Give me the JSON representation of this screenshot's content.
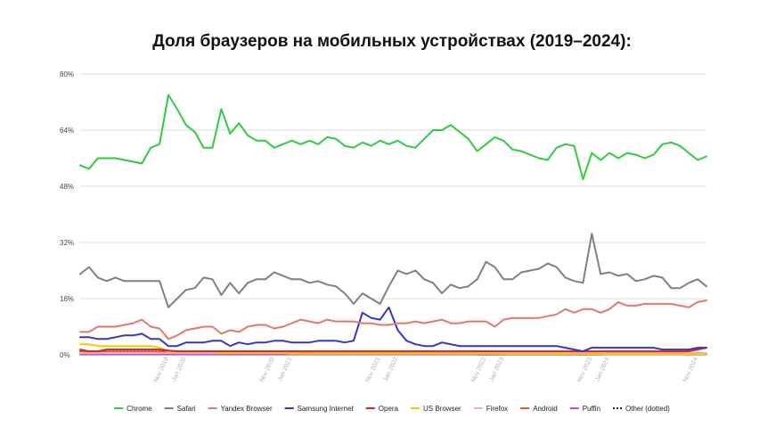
{
  "chart_data": {
    "type": "line",
    "title": "Доля браузеров на мобильных устройствах (2019–2024):",
    "xlabel": "",
    "ylabel": "",
    "y_unit": "%",
    "ylim": [
      0,
      80
    ],
    "yticks": [
      0,
      16,
      32,
      48,
      64,
      80
    ],
    "ytick_labels": [
      "0%",
      "16%",
      "32%",
      "48%",
      "64%",
      "80%"
    ],
    "grid": true,
    "legend_position": "bottom",
    "x_start": "2019-01",
    "x_end": "2024-12",
    "x_months": [
      "2019-01",
      "2019-02",
      "2019-03",
      "2019-04",
      "2019-05",
      "2019-06",
      "2019-07",
      "2019-08",
      "2019-09",
      "2019-10",
      "2019-11",
      "2019-12",
      "2020-01",
      "2020-02",
      "2020-03",
      "2020-04",
      "2020-05",
      "2020-06",
      "2020-07",
      "2020-08",
      "2020-09",
      "2020-10",
      "2020-11",
      "2020-12",
      "2021-01",
      "2021-02",
      "2021-03",
      "2021-04",
      "2021-05",
      "2021-06",
      "2021-07",
      "2021-08",
      "2021-09",
      "2021-10",
      "2021-11",
      "2021-12",
      "2022-01",
      "2022-02",
      "2022-03",
      "2022-04",
      "2022-05",
      "2022-06",
      "2022-07",
      "2022-08",
      "2022-09",
      "2022-10",
      "2022-11",
      "2022-12",
      "2023-01",
      "2023-02",
      "2023-03",
      "2023-04",
      "2023-05",
      "2023-06",
      "2023-07",
      "2023-08",
      "2023-09",
      "2023-10",
      "2023-11",
      "2023-12",
      "2024-01",
      "2024-02",
      "2024-03",
      "2024-04",
      "2024-05",
      "2024-06",
      "2024-07",
      "2024-08",
      "2024-09",
      "2024-10",
      "2024-11",
      "2024-12"
    ],
    "xtick_labels": [
      {
        "label": "Nov 2019",
        "date": "2019-11"
      },
      {
        "label": "Jan 2020",
        "date": "2020-01"
      },
      {
        "label": "Nov 2020",
        "date": "2020-11"
      },
      {
        "label": "Jan 2021",
        "date": "2021-01"
      },
      {
        "label": "Nov 2021",
        "date": "2021-11"
      },
      {
        "label": "Jan 2022",
        "date": "2022-01"
      },
      {
        "label": "Nov 2022",
        "date": "2022-11"
      },
      {
        "label": "Jan 2023",
        "date": "2023-01"
      },
      {
        "label": "Nov 2023",
        "date": "2023-11"
      },
      {
        "label": "Jan 2024",
        "date": "2024-01"
      },
      {
        "label": "Nov 2024",
        "date": "2024-11"
      }
    ],
    "series": [
      {
        "name": "Chrome",
        "color": "#2ecc40",
        "dash": "",
        "values": [
          54,
          53,
          56,
          56,
          56,
          55.5,
          55,
          54.5,
          59,
          60,
          74,
          70,
          65.5,
          63.5,
          59,
          59,
          70,
          63,
          66,
          62.5,
          61,
          61,
          59,
          60,
          61,
          60,
          61,
          60,
          62,
          61.5,
          59.5,
          59,
          60.5,
          59.5,
          61,
          60,
          61,
          59.5,
          59,
          61.5,
          64,
          64,
          65.5,
          63.5,
          61.5,
          58,
          60,
          62,
          61,
          58.5,
          58,
          57,
          56,
          55.5,
          59,
          60,
          59.5,
          50,
          57.5,
          55.5,
          57.5,
          56,
          57.5,
          57,
          56,
          57,
          60,
          60.5,
          59.5,
          57.5,
          55.5,
          56.5
        ]
      },
      {
        "name": "Safari",
        "color": "#808080",
        "dash": "",
        "values": [
          23,
          25,
          22,
          21,
          22,
          21,
          21,
          21,
          21,
          21,
          13.5,
          16,
          18.5,
          19,
          22,
          21.5,
          17,
          20.5,
          17.5,
          20.5,
          21.5,
          21.5,
          23.5,
          22.5,
          21.5,
          21.5,
          20.5,
          21,
          20,
          19.5,
          17.5,
          14.5,
          17.5,
          16,
          14.5,
          19.5,
          24,
          23,
          24,
          21.5,
          20.5,
          17.5,
          20,
          19,
          19.5,
          21.5,
          26.5,
          25,
          21.5,
          21.5,
          23.5,
          24,
          24.5,
          26,
          25,
          22,
          21,
          20.5,
          34.5,
          23,
          23.5,
          22.5,
          23,
          21,
          21.5,
          22.5,
          22,
          19,
          19,
          20.5,
          21.5,
          19.5
        ]
      },
      {
        "name": "Yandex Browser",
        "color": "#e07a6a",
        "dash": "",
        "values": [
          6.5,
          6.5,
          8,
          8,
          8,
          8.5,
          9,
          10,
          8,
          7.5,
          4.5,
          5.5,
          7,
          7.5,
          8,
          8,
          6,
          7,
          6.5,
          8,
          8.5,
          8.5,
          7.5,
          8,
          9,
          10,
          9.5,
          9,
          10,
          9.5,
          9.5,
          9.5,
          9,
          9,
          8.5,
          8.5,
          9,
          9,
          9.5,
          9,
          9.5,
          10,
          9,
          9,
          9.5,
          9.5,
          9.5,
          8,
          10,
          10.5,
          10.5,
          10.5,
          10.5,
          11,
          11.5,
          13,
          12,
          13,
          13,
          12,
          13,
          15,
          14,
          14,
          14.5,
          14.5,
          14.5,
          14.5,
          14,
          13.5,
          15,
          15.5
        ]
      },
      {
        "name": "Samsung Internet",
        "color": "#3535c8",
        "dash": "",
        "values": [
          5,
          5,
          4.5,
          4.5,
          5,
          5.5,
          5.5,
          6,
          4.5,
          4.5,
          2.5,
          2.5,
          3.5,
          3.5,
          3.5,
          4,
          4,
          2.5,
          3.5,
          3,
          3.5,
          3.5,
          4,
          4,
          3.5,
          3.5,
          3.5,
          4,
          4,
          4,
          3.5,
          4,
          12,
          10.5,
          10,
          13.5,
          7,
          4,
          3,
          2.5,
          2.5,
          3.5,
          3,
          2.5,
          2.5,
          2.5,
          2.5,
          2.5,
          2.5,
          2.5,
          2.5,
          2.5,
          2.5,
          2.5,
          2.5,
          2,
          1.5,
          1,
          2,
          2,
          2,
          2,
          2,
          2,
          2,
          2,
          1.5,
          1.5,
          1.5,
          1.5,
          2,
          2
        ]
      },
      {
        "name": "Opera",
        "color": "#e02020",
        "dash": "",
        "values": [
          1.5,
          1,
          1,
          1.5,
          1.5,
          1.5,
          1.5,
          1.5,
          1.5,
          1.5,
          1.2,
          1,
          1,
          1,
          1,
          1,
          1,
          1,
          1,
          1,
          1,
          1,
          1,
          1,
          1,
          1,
          1,
          1,
          1,
          1,
          1,
          1,
          1,
          1,
          1,
          1,
          1,
          1,
          1,
          1,
          1,
          1,
          1,
          1,
          1,
          1,
          1,
          1,
          1,
          1,
          1,
          1,
          1,
          1,
          1,
          1,
          1,
          1,
          1,
          1,
          1,
          1,
          1,
          1,
          1,
          1,
          1,
          1,
          1,
          1,
          1.5,
          2
        ]
      },
      {
        "name": "US Browser",
        "color": "#f5c800",
        "dash": "",
        "values": [
          3,
          3,
          2.5,
          2.5,
          2.5,
          2.5,
          2.5,
          2.5,
          2.5,
          2,
          1,
          0.8,
          0.8,
          0.8,
          1,
          1,
          0.5,
          0.5,
          0.5,
          0.5,
          0.5,
          0.5,
          0.5,
          0.5,
          0.3,
          0.3,
          0.3,
          0.3,
          0.3,
          0.3,
          0.3,
          0.3,
          0.3,
          0.3,
          0.3,
          0.3,
          0.3,
          0.3,
          0.3,
          0.3,
          0.3,
          0.3,
          0.3,
          0.3,
          0.3,
          0.3,
          0.3,
          0.3,
          0.2,
          0.2,
          0.2,
          0.2,
          0.2,
          0.2,
          0.2,
          0.2,
          0.2,
          0.2,
          0.2,
          0.2,
          0.2,
          0.2,
          0.2,
          0.2,
          0.2,
          0.2,
          0.2,
          0.2,
          0.2,
          0.2,
          0.2,
          0.2
        ]
      },
      {
        "name": "Firefox",
        "color": "#f5b0a8",
        "dash": "",
        "values": [
          0.5,
          0.5,
          0.5,
          0.5,
          0.5,
          0.5,
          0.5,
          0.5,
          0.5,
          0.5,
          0.5,
          0.5,
          0.5,
          0.5,
          0.5,
          0.5,
          0.5,
          0.5,
          0.5,
          0.5,
          0.5,
          0.5,
          0.5,
          0.5,
          0.5,
          0.5,
          0.5,
          0.5,
          0.5,
          0.5,
          0.5,
          0.5,
          0.5,
          0.5,
          0.5,
          0.5,
          0.5,
          0.5,
          0.5,
          0.5,
          0.5,
          0.5,
          0.5,
          0.5,
          0.5,
          0.5,
          0.5,
          0.5,
          0.5,
          0.5,
          0.5,
          0.5,
          0.5,
          0.5,
          0.5,
          0.5,
          0.5,
          0.5,
          0.5,
          0.5,
          0.5,
          0.5,
          0.5,
          0.5,
          0.5,
          0.5,
          0.5,
          0.5,
          0.5,
          0.5,
          0.5,
          0.5
        ]
      },
      {
        "name": "Android",
        "color": "#e8582e",
        "dash": "",
        "values": [
          0.8,
          0.8,
          0.8,
          0.8,
          0.8,
          0.8,
          0.8,
          0.8,
          0.8,
          0.8,
          0.8,
          0.8,
          0.8,
          0.8,
          0.8,
          0.5,
          0.5,
          0.5,
          0.5,
          0.5,
          0.5,
          0.5,
          0.5,
          0.5,
          0.5,
          0.5,
          0.5,
          0.5,
          0.5,
          0.5,
          0.5,
          0.5,
          0.5,
          0.5,
          0.5,
          0.5,
          0.5,
          0.5,
          0.5,
          0.5,
          0.5,
          0.5,
          0.5,
          0.5,
          0.5,
          0.5,
          0.5,
          0.5,
          0.5,
          0.5,
          0.5,
          0.5,
          0.5,
          0.5,
          0.5,
          0.5,
          0.5,
          0.5,
          0.5,
          0.5,
          0.5,
          0.5,
          0.5,
          0.5,
          0.5,
          0.5,
          0.5,
          0.5,
          0.5,
          0.5,
          0.5,
          0.5
        ]
      },
      {
        "name": "Puffin",
        "color": "#a855f7",
        "dash": "",
        "values": [
          0.1,
          0.1,
          0.1,
          0.1,
          0.1,
          0.1,
          0.1,
          0.1,
          0.1,
          0.1,
          0.1,
          0.1,
          0.1,
          0.1,
          0.1,
          0.1,
          0.1,
          0.1,
          0.1,
          0.1,
          0.1,
          0.1,
          0.1,
          0.1,
          0.1,
          0.1,
          0.1,
          0.1,
          0.1,
          0.1,
          0.1,
          0.1,
          0.1,
          0.1,
          0.1,
          0.1,
          0.1,
          0.1,
          0.1,
          0.1,
          0.1,
          0.1,
          0.1,
          0.1,
          0.1,
          0.1,
          0.1,
          0.1,
          0.1,
          0.1,
          0.1,
          0.1,
          0.1,
          0.1,
          0.1,
          0.1,
          0.1,
          0.1,
          0.1,
          0.1,
          0.1,
          0.1,
          0.1,
          0.1,
          0.1,
          0.1,
          0.1,
          0.1,
          0.1,
          0.1,
          0.1,
          0.1
        ]
      },
      {
        "name": "Other (dotted)",
        "color": "#222222",
        "dash": "2,2",
        "values": [
          1,
          1,
          1,
          1,
          1,
          1,
          1,
          1,
          1,
          1,
          1,
          1,
          1,
          1,
          1,
          1,
          1,
          1,
          1,
          1,
          1,
          1,
          1,
          1,
          1,
          1,
          0.5,
          0.5,
          0.5,
          0.5,
          0.5,
          0.5,
          0.5,
          0.5,
          0.5,
          0.5,
          0.5,
          0.5,
          1,
          1,
          1,
          0.5,
          0.5,
          0.5,
          0.5,
          0,
          0,
          0,
          0,
          0,
          0,
          0,
          0,
          0,
          0,
          0,
          0,
          0,
          0,
          0,
          0.5,
          0.5,
          0.5,
          0.5,
          0.5,
          0.5,
          0.5,
          0.5,
          0.5,
          0.5,
          0.5,
          0.5
        ]
      }
    ]
  }
}
